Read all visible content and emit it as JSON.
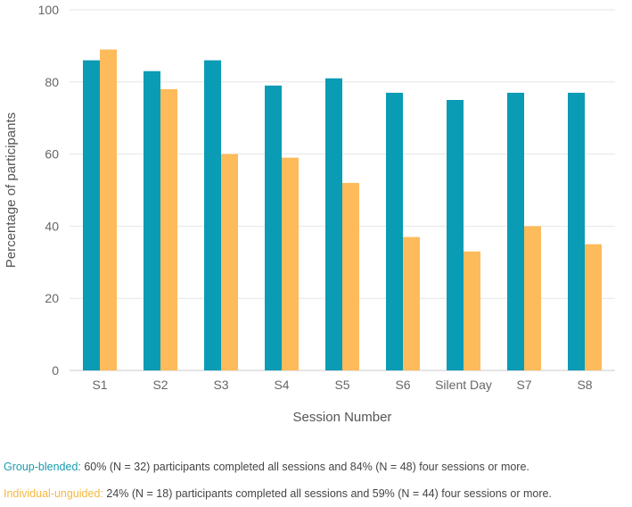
{
  "chart_data": {
    "type": "bar",
    "title": "",
    "xlabel": "Session Number",
    "ylabel": "Percentage of participants",
    "ylim": [
      0,
      100
    ],
    "yticks": [
      0,
      20,
      40,
      60,
      80,
      100
    ],
    "grid": true,
    "categories": [
      "S1",
      "S2",
      "S3",
      "S4",
      "S5",
      "S6",
      "Silent Day",
      "S7",
      "S8"
    ],
    "series": [
      {
        "name": "Group-blended",
        "color": "#0a9bb5",
        "values": [
          86,
          83,
          86,
          79,
          81,
          77,
          75,
          77,
          77
        ]
      },
      {
        "name": "Individual-unguided",
        "color": "#fdbb5c",
        "values": [
          89,
          78,
          60,
          59,
          52,
          37,
          33,
          40,
          35
        ]
      }
    ]
  },
  "notes": [
    {
      "label": "Group-blended:",
      "text": " 60% (N = 32) participants completed all sessions and 84% (N = 48) four sessions or more.",
      "color": "#1a9bb0"
    },
    {
      "label": "Individual-unguided:",
      "text": " 24% (N = 18) participants completed all sessions and 59% (N = 44) four sessions or more.",
      "color": "#f5b942"
    }
  ]
}
